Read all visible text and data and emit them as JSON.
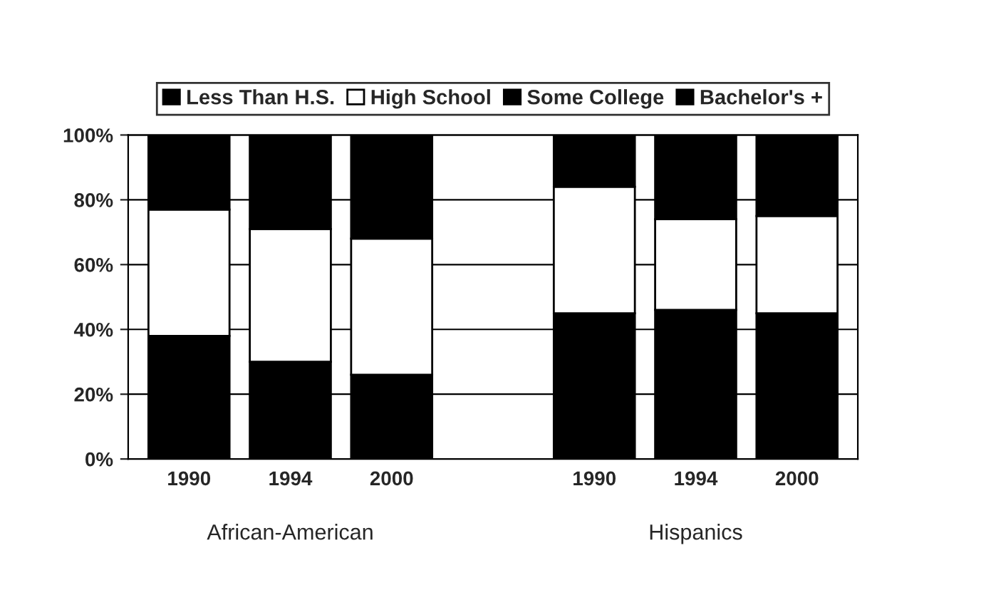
{
  "chart_data": {
    "type": "bar",
    "stacked": true,
    "categories": [
      "1990",
      "1994",
      "2000",
      null,
      "1990",
      "1994",
      "2000"
    ],
    "series": [
      {
        "name": "Less Than H.S.",
        "color": "#000000",
        "values": [
          38,
          30,
          26,
          null,
          45,
          46,
          45
        ]
      },
      {
        "name": "High School",
        "color": "#ffffff",
        "values": [
          39,
          41,
          42,
          null,
          39,
          28,
          30
        ]
      },
      {
        "name": "Some College",
        "color": "#000000",
        "values": [
          23,
          29,
          32,
          null,
          16,
          26,
          25
        ]
      },
      {
        "name": "Bachelor's +",
        "color": "#000000",
        "values": [
          null,
          null,
          null,
          null,
          null,
          null,
          null
        ]
      }
    ],
    "ylim": [
      0,
      100
    ],
    "yticks": [
      {
        "value": 0,
        "label": "0%"
      },
      {
        "value": 20,
        "label": "20%"
      },
      {
        "value": 40,
        "label": "40%"
      },
      {
        "value": 60,
        "label": "60%"
      },
      {
        "value": 80,
        "label": "80%"
      },
      {
        "value": 100,
        "label": "100%"
      }
    ],
    "grid": "y",
    "legend": "top",
    "annotations": [
      "African-American",
      "Hispanics"
    ]
  }
}
